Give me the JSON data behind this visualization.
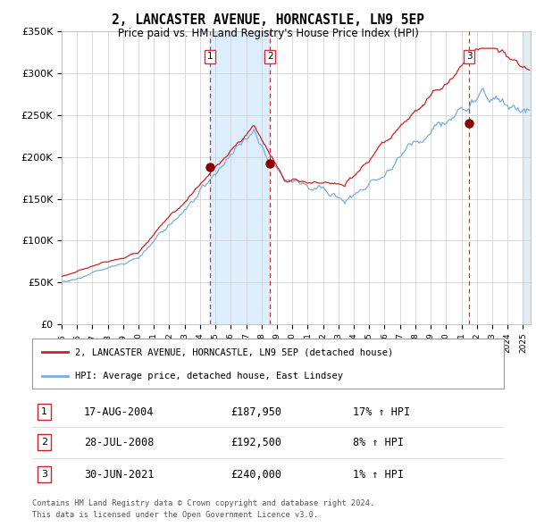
{
  "title": "2, LANCASTER AVENUE, HORNCASTLE, LN9 5EP",
  "subtitle": "Price paid vs. HM Land Registry's House Price Index (HPI)",
  "legend_line1": "2, LANCASTER AVENUE, HORNCASTLE, LN9 5EP (detached house)",
  "legend_line2": "HPI: Average price, detached house, East Lindsey",
  "footer1": "Contains HM Land Registry data © Crown copyright and database right 2024.",
  "footer2": "This data is licensed under the Open Government Licence v3.0.",
  "transactions": [
    {
      "num": 1,
      "date": "17-AUG-2004",
      "price": 187950,
      "pct": "17%",
      "dir": "↑"
    },
    {
      "num": 2,
      "date": "28-JUL-2008",
      "price": 192500,
      "pct": "8%",
      "dir": "↑"
    },
    {
      "num": 3,
      "date": "30-JUN-2021",
      "price": 240000,
      "pct": "1%",
      "dir": "↑"
    }
  ],
  "sale_dates_num": [
    2004.625,
    2008.56,
    2021.5
  ],
  "sale_prices": [
    187950,
    192500,
    240000
  ],
  "hpi_color": "#7aaddd",
  "price_color": "#cc2222",
  "dot_color": "#880000",
  "vline_color": "#cc3333",
  "shade_color": "#ddeeff",
  "grid_color": "#cccccc",
  "bg_color": "#ffffff",
  "ylim": [
    0,
    350000
  ],
  "yticks": [
    0,
    50000,
    100000,
    150000,
    200000,
    250000,
    300000,
    350000
  ],
  "ytick_labels": [
    "£0",
    "£50K",
    "£100K",
    "£150K",
    "£200K",
    "£250K",
    "£300K",
    "£350K"
  ],
  "xlim_start": 1995.0,
  "xlim_end": 2025.5,
  "xtick_years": [
    1995,
    1996,
    1997,
    1998,
    1999,
    2000,
    2001,
    2002,
    2003,
    2004,
    2005,
    2006,
    2007,
    2008,
    2009,
    2010,
    2011,
    2012,
    2013,
    2014,
    2015,
    2016,
    2017,
    2018,
    2019,
    2020,
    2021,
    2022,
    2023,
    2024,
    2025
  ]
}
